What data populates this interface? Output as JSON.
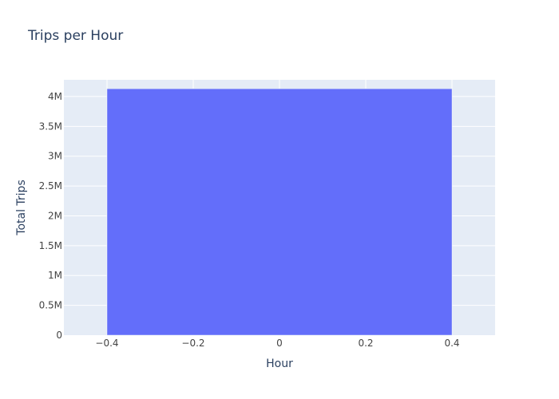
{
  "chart_data": {
    "type": "bar",
    "title": "Trips per Hour",
    "xlabel": "Hour",
    "ylabel": "Total Trips",
    "x": [
      0
    ],
    "values": [
      4130000
    ],
    "bar_width": 0.8,
    "xlim": [
      -0.5,
      0.5
    ],
    "ylim": [
      0,
      4280000
    ],
    "x_ticks": [
      -0.4,
      -0.2,
      0,
      0.2,
      0.4
    ],
    "x_tick_labels": [
      "−0.4",
      "−0.2",
      "0",
      "0.2",
      "0.4"
    ],
    "y_ticks": [
      0,
      500000,
      1000000,
      1500000,
      2000000,
      2500000,
      3000000,
      3500000,
      4000000
    ],
    "y_tick_labels": [
      "0",
      "0.5M",
      "1M",
      "1.5M",
      "2M",
      "2.5M",
      "3M",
      "3.5M",
      "4M"
    ],
    "grid": true,
    "colors": {
      "bar": "#636efa",
      "plot_bg": "#e5ecf6",
      "grid": "#ffffff",
      "text": "#2a3f5f",
      "tick_text": "#444444"
    }
  }
}
